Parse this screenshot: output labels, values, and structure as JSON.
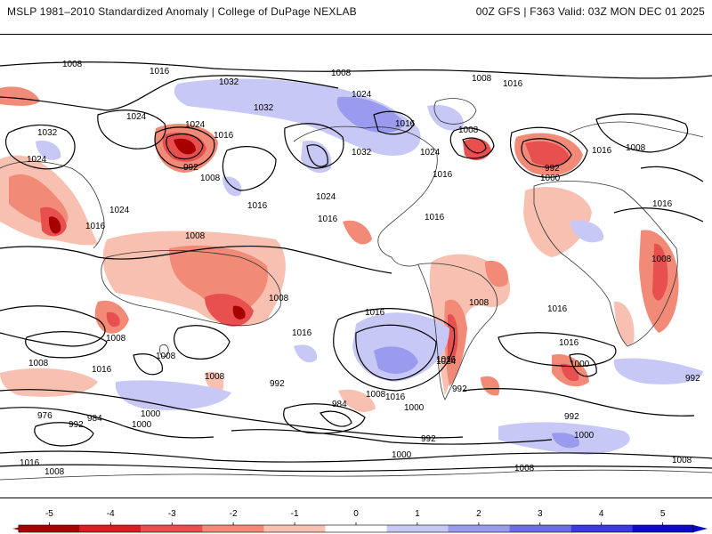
{
  "header": {
    "title": "MSLP 1981–2010 Standardized Anomaly | College of DuPage NEXLAB",
    "run_info": "00Z GFS | F363 Valid: 03Z MON DEC 01 2025"
  },
  "map": {
    "isobar_labels": [
      "1008",
      "1016",
      "1008",
      "1008",
      "1016",
      "1032",
      "1024",
      "1024",
      "1032",
      "1024",
      "1016",
      "1032",
      "1024",
      "1016",
      "1008",
      "1024",
      "992",
      "1008",
      "1016",
      "1016",
      "1024",
      "1016",
      "1024",
      "1032",
      "1016",
      "1016",
      "1008",
      "992",
      "1000",
      "1016",
      "1008",
      "1008",
      "1016",
      "1008",
      "1016",
      "1016",
      "1008",
      "1008",
      "1016",
      "1016",
      "1008",
      "1000",
      "1024",
      "1016",
      "992",
      "1008",
      "1016",
      "992",
      "984",
      "976",
      "992",
      "984",
      "1000",
      "1000",
      "1000",
      "992",
      "1000",
      "992",
      "1008",
      "1016",
      "1008",
      "1000",
      "992",
      "1008",
      "1016",
      "1008",
      "1008"
    ]
  },
  "legend": {
    "ticks": [
      "-5",
      "-4",
      "-3",
      "-2",
      "-1",
      "0",
      "1",
      "2",
      "3",
      "4",
      "5"
    ],
    "colors": [
      "#a80000",
      "#d42020",
      "#e85050",
      "#f28a78",
      "#f8c0b0",
      "#ffffff",
      "#c8c8f6",
      "#9a9aee",
      "#6c6ce4",
      "#3a3ad8",
      "#0a0ac8"
    ]
  }
}
